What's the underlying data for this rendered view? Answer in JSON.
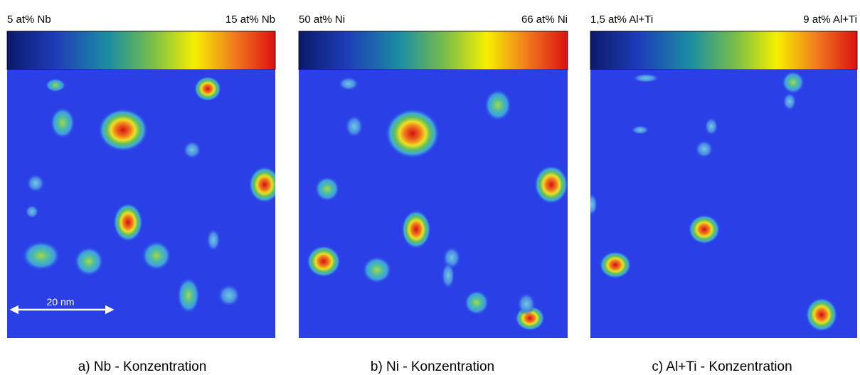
{
  "panels": [
    {
      "min_label": "5 at% Nb",
      "max_label": "15 at% Nb",
      "caption": "a) Nb - Konzentration",
      "scale_bar": "20 nm"
    },
    {
      "min_label": "50 at% Ni",
      "max_label": "66 at% Ni",
      "caption": "b) Ni - Konzentration"
    },
    {
      "min_label": "1,5 at% Al+Ti",
      "max_label": "9 at% Al+Ti",
      "caption": "c) Al+Ti - Konzentration"
    }
  ]
}
